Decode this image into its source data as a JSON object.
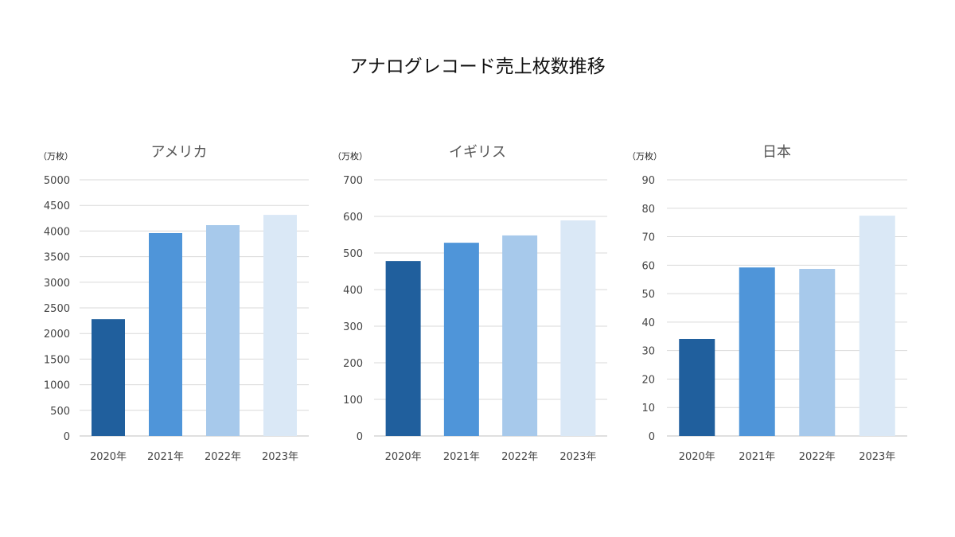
{
  "title": "アナログレコード売上枚数推移",
  "chart_data": [
    {
      "type": "bar",
      "title": "アメリカ",
      "unit_label": "（万枚）",
      "categories": [
        "2020年",
        "2021年",
        "2022年",
        "2023年"
      ],
      "values": [
        2280,
        3960,
        4115,
        4315
      ],
      "ylim": [
        0,
        5000
      ],
      "yticks": [
        0,
        500,
        1000,
        1500,
        2000,
        2500,
        3000,
        3500,
        4000,
        4500,
        5000
      ],
      "grid": true
    },
    {
      "type": "bar",
      "title": "イギリス",
      "unit_label": "（万枚）",
      "categories": [
        "2020年",
        "2021年",
        "2022年",
        "2023年"
      ],
      "values": [
        478,
        528,
        548,
        589
      ],
      "ylim": [
        0,
        700
      ],
      "yticks": [
        0,
        100,
        200,
        300,
        400,
        500,
        600,
        700
      ],
      "grid": true
    },
    {
      "type": "bar",
      "title": "日本",
      "unit_label": "（万枚）",
      "categories": [
        "2020年",
        "2021年",
        "2022年",
        "2023年"
      ],
      "values": [
        34.1,
        59.2,
        58.7,
        77.4
      ],
      "ylim": [
        0,
        90
      ],
      "yticks": [
        0,
        10,
        20,
        30,
        40,
        50,
        60,
        70,
        80,
        90
      ],
      "grid": true
    }
  ],
  "colors": [
    "#205f9d",
    "#4f95d9",
    "#a7c9eb",
    "#dae8f6"
  ]
}
